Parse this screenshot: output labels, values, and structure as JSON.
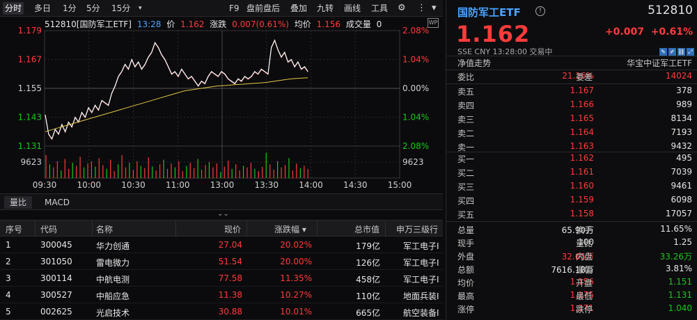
{
  "toolbar": {
    "items": [
      "分时",
      "多日",
      "1分",
      "5分",
      "15分",
      "▾",
      "F9",
      "盘前盘后",
      "叠加",
      "九转",
      "画线",
      "工具"
    ],
    "settings_icon": "gear-icon",
    "more_icon": "more-vertical-icon"
  },
  "infobar": {
    "code_name": "512810[国防军工ETF]",
    "time": "13:28",
    "price_label": "价",
    "price": "1.162",
    "chg_label": "涨跌",
    "chg": "0.007(0.61%)",
    "avg_label": "均价",
    "avg": "1.156",
    "vol_label": "成交量",
    "vol": "0",
    "wp": "WP"
  },
  "chart_data": {
    "type": "line",
    "x_ticks": [
      "09:30",
      "10:00",
      "10:30",
      "11:00",
      "13:00",
      "13:30",
      "14:00",
      "14:30",
      "15:00"
    ],
    "y_left_ticks": [
      "1.179",
      "1.167",
      "1.155",
      "1.143",
      "1.131"
    ],
    "y_right_ticks": [
      "2.08%",
      "1.04%",
      "0.00%",
      "1.04%",
      "2.08%"
    ],
    "volume_label": "9623",
    "ylim": [
      1.131,
      1.179
    ],
    "prev_close": 1.155,
    "colors": {
      "price": "#ffffff",
      "avg": "#e6c845",
      "up": "#ff3b3b",
      "down": "#19c919"
    },
    "price": [
      1.144,
      1.136,
      1.134,
      1.138,
      1.136,
      1.14,
      1.137,
      1.141,
      1.139,
      1.143,
      1.141,
      1.145,
      1.143,
      1.147,
      1.145,
      1.148,
      1.146,
      1.15,
      1.149,
      1.148,
      1.153,
      1.156,
      1.16,
      1.162,
      1.165,
      1.163,
      1.167,
      1.164,
      1.166,
      1.163,
      1.165,
      1.168,
      1.17,
      1.174,
      1.172,
      1.169,
      1.167,
      1.164,
      1.161,
      1.162,
      1.16,
      1.163,
      1.161,
      1.159,
      1.16,
      1.158,
      1.156,
      1.158,
      1.157,
      1.16,
      1.162,
      1.161,
      1.16,
      1.162,
      1.161,
      1.159,
      1.158,
      1.157,
      1.159,
      1.158,
      1.16,
      1.159,
      1.16,
      1.162,
      1.161,
      1.163,
      1.162,
      1.161,
      1.172,
      1.175,
      1.171,
      1.168,
      1.17,
      1.166,
      1.167,
      1.164,
      1.166,
      1.163,
      1.164,
      1.162
    ],
    "avg": [
      1.137,
      1.138,
      1.139,
      1.14,
      1.141,
      1.142,
      1.143,
      1.144,
      1.145,
      1.146,
      1.147,
      1.148,
      1.149,
      1.15,
      1.151,
      1.152,
      1.153,
      1.154,
      1.1545,
      1.155,
      1.1555,
      1.156,
      1.1562,
      1.1565,
      1.1567,
      1.157,
      1.1572,
      1.1575,
      1.158,
      1.1585,
      1.159,
      1.1592,
      1.1594
    ],
    "volume": [
      30,
      18,
      14,
      22,
      10,
      25,
      12,
      20,
      16,
      28,
      14,
      19,
      22,
      15,
      26,
      17,
      12,
      24,
      9,
      18,
      30,
      14,
      20,
      11,
      22,
      16,
      13,
      27,
      15,
      10,
      18,
      24,
      12,
      19,
      14,
      22,
      9,
      16,
      20,
      13,
      25,
      11,
      17,
      21,
      14,
      19,
      8,
      15,
      23,
      12,
      18,
      10,
      16,
      14,
      20,
      12,
      9,
      15,
      33,
      18,
      11,
      22,
      14,
      17,
      26,
      10,
      19,
      13,
      16,
      12
    ],
    "vol_colors": "mixed"
  },
  "subtabs": [
    "量比",
    "MACD"
  ],
  "table": {
    "headers": [
      "序号",
      "代码",
      "名称",
      "现价",
      "涨跌幅 ▾",
      "总市值",
      "申万三级行"
    ],
    "rows": [
      [
        "1",
        "300045",
        "华力创通",
        "27.04",
        "20.02%",
        "179亿",
        "军工电子I"
      ],
      [
        "2",
        "301050",
        "雷电微力",
        "51.54",
        "20.00%",
        "126亿",
        "军工电子I"
      ],
      [
        "3",
        "300114",
        "中航电测",
        "77.58",
        "11.35%",
        "458亿",
        "军工电子I"
      ],
      [
        "4",
        "300527",
        "中船应急",
        "11.38",
        "10.27%",
        "110亿",
        "地面兵装I"
      ],
      [
        "5",
        "002625",
        "光启技术",
        "30.88",
        "10.01%",
        "665亿",
        "航空装备I"
      ]
    ]
  },
  "quote": {
    "name": "国防军工ETF",
    "code": "512810",
    "price": "1.162",
    "change": "+0.007",
    "change_pct": "+0.61%",
    "meta": "SSE  CNY  13:28:00  交易中",
    "nav_label": "净值走势",
    "tracker": "华宝中证军工ETF",
    "weibi_label": "委比",
    "weibi": "21.16%",
    "weicha_label": "委差",
    "weicha": "14024",
    "asks": [
      {
        "label": "卖五",
        "price": "1.167",
        "vol": "378"
      },
      {
        "label": "卖四",
        "price": "1.166",
        "vol": "989"
      },
      {
        "label": "卖三",
        "price": "1.165",
        "vol": "8134"
      },
      {
        "label": "卖二",
        "price": "1.164",
        "vol": "7193"
      },
      {
        "label": "卖一",
        "price": "1.163",
        "vol": "9432"
      }
    ],
    "bids": [
      {
        "label": "买一",
        "price": "1.162",
        "vol": "495"
      },
      {
        "label": "买二",
        "price": "1.161",
        "vol": "7039"
      },
      {
        "label": "买三",
        "price": "1.160",
        "vol": "9461"
      },
      {
        "label": "买四",
        "price": "1.159",
        "vol": "6098"
      },
      {
        "label": "买五",
        "price": "1.158",
        "vol": "17057"
      }
    ],
    "stats": [
      {
        "l1": "总量",
        "v1": "65.90万",
        "c1": "white",
        "l2": "换手",
        "v2": "11.65%",
        "c2": "white"
      },
      {
        "l1": "现手",
        "v1": "100",
        "c1": "white",
        "l2": "量比",
        "v2": "1.25",
        "c2": "white"
      },
      {
        "l1": "外盘",
        "v1": "32.65万",
        "c1": "red",
        "l2": "内盘",
        "v2": "33.26万",
        "c2": "green"
      },
      {
        "l1": "总额",
        "v1": "7616.18万",
        "c1": "white",
        "l2": "振幅",
        "v2": "3.81%",
        "c2": "white"
      },
      {
        "l1": "均价",
        "v1": "1.156",
        "c1": "red",
        "l2": "开盘",
        "v2": "1.151",
        "c2": "green"
      },
      {
        "l1": "最高",
        "v1": "1.175",
        "c1": "red",
        "l2": "最低",
        "v2": "1.131",
        "c2": "green"
      },
      {
        "l1": "涨停",
        "v1": "1.271",
        "c1": "red",
        "l2": "跌停",
        "v2": "1.040",
        "c2": "green"
      }
    ]
  }
}
